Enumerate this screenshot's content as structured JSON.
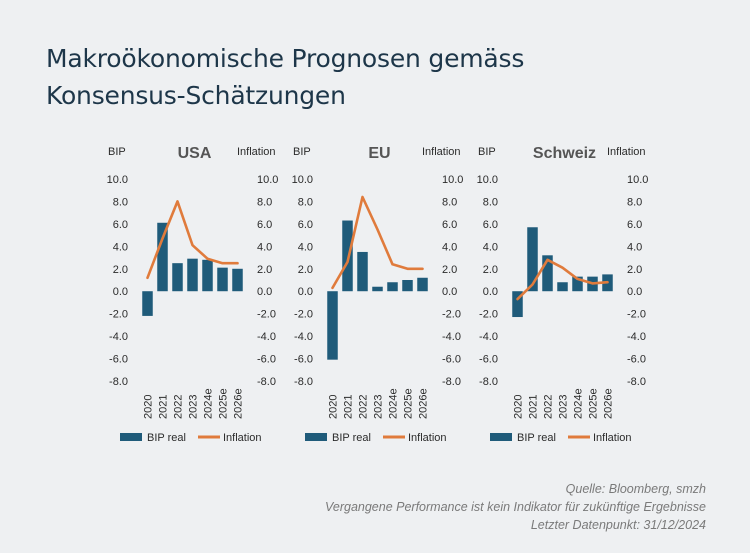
{
  "title": {
    "line1": "Makroökonomische Prognosen gemäss",
    "line2": "Konsensus-Schätzungen"
  },
  "colors": {
    "bar": "#1f5b7a",
    "line": "#e07b3c",
    "axis_text": "#2b2b2b",
    "grid": "#d9d9d9",
    "title": "#1d3649"
  },
  "chart_data": [
    {
      "type": "bar",
      "title": "USA",
      "ylabel_left": "BIP",
      "ylabel_right": "Inflation",
      "categories": [
        "2020",
        "2021",
        "2022",
        "2023",
        "2024e",
        "2025e",
        "2026e"
      ],
      "ylim": [
        -8,
        10
      ],
      "yticks": [
        "10.0",
        "8.0",
        "6.0",
        "4.0",
        "2.0",
        "0.0",
        "-2.0",
        "-4.0",
        "-6.0",
        "-8.0"
      ],
      "series": [
        {
          "name": "BIP real",
          "kind": "bar",
          "values": [
            -2.2,
            6.1,
            2.5,
            2.9,
            2.8,
            2.1,
            2.0
          ]
        },
        {
          "name": "Inflation",
          "kind": "line",
          "values": [
            1.2,
            4.7,
            8.0,
            4.1,
            2.9,
            2.5,
            2.5
          ]
        }
      ],
      "legend": [
        "BIP real",
        "Inflation"
      ]
    },
    {
      "type": "bar",
      "title": "EU",
      "ylabel_left": "BIP",
      "ylabel_right": "Inflation",
      "categories": [
        "2020",
        "2021",
        "2022",
        "2023",
        "2024e",
        "2025e",
        "2026e"
      ],
      "ylim": [
        -8,
        10
      ],
      "yticks": [
        "10.0",
        "8.0",
        "6.0",
        "4.0",
        "2.0",
        "0.0",
        "-2.0",
        "-4.0",
        "-6.0",
        "-8.0"
      ],
      "series": [
        {
          "name": "BIP real",
          "kind": "bar",
          "values": [
            -6.1,
            6.3,
            3.5,
            0.4,
            0.8,
            1.0,
            1.2
          ]
        },
        {
          "name": "Inflation",
          "kind": "line",
          "values": [
            0.3,
            2.6,
            8.4,
            5.5,
            2.4,
            2.0,
            2.0
          ]
        }
      ],
      "legend": [
        "BIP real",
        "Inflation"
      ]
    },
    {
      "type": "bar",
      "title": "Schweiz",
      "ylabel_left": "BIP",
      "ylabel_right": "Inflation",
      "categories": [
        "2020",
        "2021",
        "2022",
        "2023",
        "2024e",
        "2025e",
        "2026e"
      ],
      "ylim": [
        -8,
        10
      ],
      "yticks": [
        "10.0",
        "8.0",
        "6.0",
        "4.0",
        "2.0",
        "0.0",
        "-2.0",
        "-4.0",
        "-6.0",
        "-8.0"
      ],
      "series": [
        {
          "name": "BIP real",
          "kind": "bar",
          "values": [
            -2.3,
            5.7,
            3.2,
            0.8,
            1.3,
            1.3,
            1.5
          ]
        },
        {
          "name": "Inflation",
          "kind": "line",
          "values": [
            -0.7,
            0.6,
            2.8,
            2.1,
            1.1,
            0.7,
            0.8
          ]
        }
      ],
      "legend": [
        "BIP real",
        "Inflation"
      ]
    }
  ],
  "footer": {
    "source": "Quelle: Bloomberg, smzh",
    "disclaimer": "Vergangene Performance ist kein Indikator für zukünftige Ergebnisse",
    "last_data_point": "Letzter Datenpunkt: 31/12/2024"
  }
}
